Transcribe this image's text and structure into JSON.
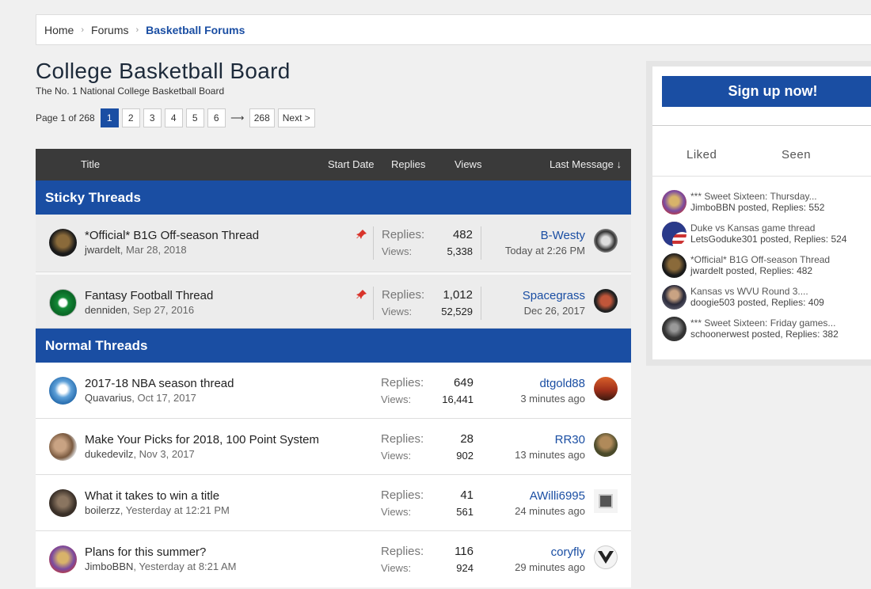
{
  "breadcrumb": {
    "items": [
      "Home",
      "Forums"
    ],
    "current": "Basketball Forums"
  },
  "page": {
    "title": "College Basketball Board",
    "subtitle": "The No. 1 National College Basketball Board"
  },
  "pagination": {
    "label": "Page 1 of 268",
    "pages": [
      "1",
      "2",
      "3",
      "4",
      "5",
      "6"
    ],
    "arrow": "⟶",
    "last": "268",
    "next": "Next >"
  },
  "table": {
    "headers": {
      "title": "Title",
      "start_date": "Start Date",
      "replies": "Replies",
      "views": "Views",
      "last_message": "Last Message ↓"
    },
    "sticky_label": "Sticky Threads",
    "normal_label": "Normal Threads",
    "replies_label": "Replies:",
    "views_label": "Views:",
    "sticky": [
      {
        "title": "*Official* B1G Off-season Thread",
        "author": "jwardelt",
        "date": ", Mar 28, 2018",
        "replies": "482",
        "views": "5,338",
        "last_user": "B-Westy",
        "last_time": "Today at 2:26 PM"
      },
      {
        "title": "Fantasy Football Thread",
        "author": "denniden",
        "date": ", Sep 27, 2016",
        "replies": "1,012",
        "views": "52,529",
        "last_user": "Spacegrass",
        "last_time": "Dec 26, 2017"
      }
    ],
    "normal": [
      {
        "title": "2017-18 NBA season thread",
        "author": "Quavarius",
        "date": ", Oct 17, 2017",
        "replies": "649",
        "views": "16,441",
        "last_user": "dtgold88",
        "last_time": "3 minutes ago"
      },
      {
        "title": "Make Your Picks for 2018, 100 Point System",
        "author": "dukedevilz",
        "date": ", Nov 3, 2017",
        "replies": "28",
        "views": "902",
        "last_user": "RR30",
        "last_time": "13 minutes ago"
      },
      {
        "title": "What it takes to win a title",
        "author": "boilerzz",
        "date": ", Yesterday at 12:21 PM",
        "replies": "41",
        "views": "561",
        "last_user": "AWilli6995",
        "last_time": "24 minutes ago"
      },
      {
        "title": "Plans for this summer?",
        "author": "JimboBBN",
        "date": ", Yesterday at 8:21 AM",
        "replies": "116",
        "views": "924",
        "last_user": "coryfly",
        "last_time": "29 minutes ago"
      }
    ]
  },
  "sidebar": {
    "signup": "Sign up now!",
    "tabs": [
      "Liked",
      "Seen"
    ],
    "activity": [
      {
        "title": "*** Sweet Sixteen: Thursday...",
        "sub": "JimboBBN posted, Replies: 552"
      },
      {
        "title": "Duke vs Kansas game thread",
        "sub": "LetsGoduke301 posted, Replies: 524"
      },
      {
        "title": "*Official* B1G Off-season Thread",
        "sub": "jwardelt posted, Replies: 482"
      },
      {
        "title": "Kansas vs WVU Round 3....",
        "sub": "doogie503 posted, Replies: 409"
      },
      {
        "title": "*** Sweet Sixteen: Friday games...",
        "sub": "schoonerwest posted, Replies: 382"
      }
    ]
  },
  "colors": {
    "accent": "#1a4ea3",
    "header_dark": "#3a3a3a",
    "pin": "#d9342b"
  }
}
